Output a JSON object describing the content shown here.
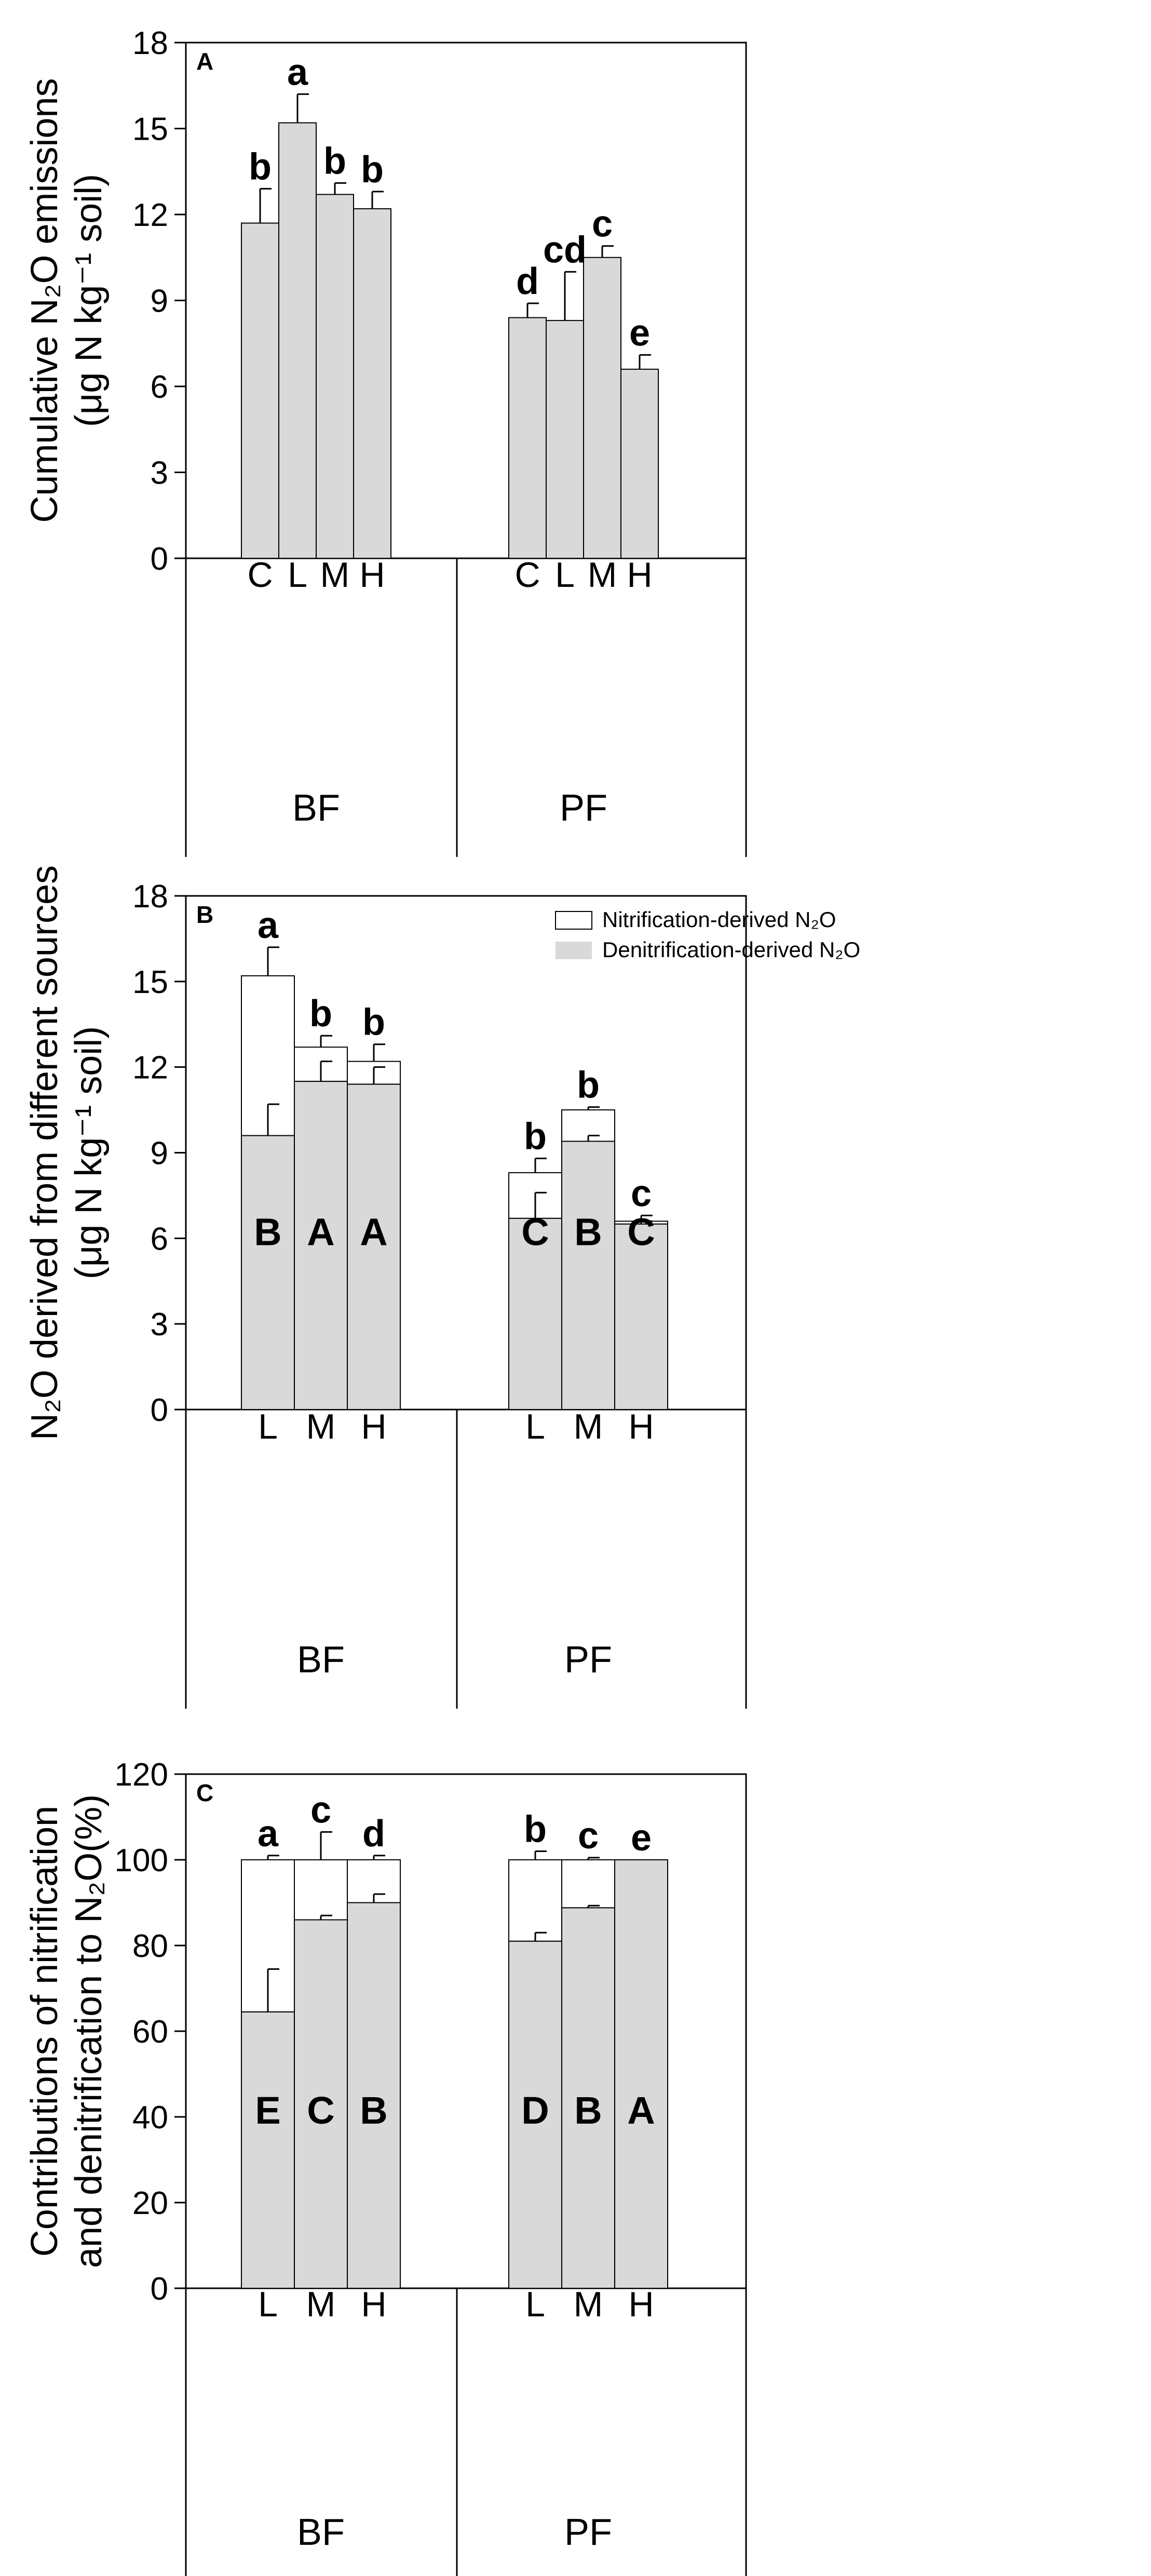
{
  "colors": {
    "denitrification_fill": "#d9d9d9",
    "nitrification_fill": "#ffffff",
    "bar_fill": "#d9d9d9",
    "stroke": "#000000"
  },
  "legend": {
    "nitrification": "Nitrification-derived N₂O",
    "denitrification": "Denitrification-derived N₂O"
  },
  "chart_data": [
    {
      "id": "A",
      "type": "bar",
      "panel_label": "A",
      "ylabel_line1": "Cumulative N₂O emissions",
      "ylabel_line2": "(μg N kg⁻¹ soil)",
      "ylim": [
        0,
        18
      ],
      "yticks": [
        0,
        3,
        6,
        9,
        12,
        15,
        18
      ],
      "groups": [
        {
          "name": "BF",
          "categories": [
            "C",
            "L",
            "M",
            "H"
          ],
          "values": [
            11.7,
            15.2,
            12.7,
            12.2
          ],
          "errors": [
            1.2,
            1.0,
            0.4,
            0.6
          ],
          "letters": [
            "b",
            "a",
            "b",
            "b"
          ]
        },
        {
          "name": "PF",
          "categories": [
            "C",
            "L",
            "M",
            "H"
          ],
          "values": [
            8.4,
            8.3,
            10.5,
            6.6
          ],
          "errors": [
            0.5,
            1.7,
            0.4,
            0.5
          ],
          "letters": [
            "d",
            "cd",
            "c",
            "e"
          ]
        }
      ]
    },
    {
      "id": "B",
      "type": "bar",
      "stacked": true,
      "panel_label": "B",
      "ylabel_line1": "N₂O  derived from different sources",
      "ylabel_line2": "(μg N kg⁻¹ soil)",
      "ylim": [
        0,
        18
      ],
      "yticks": [
        0,
        3,
        6,
        9,
        12,
        15,
        18
      ],
      "legend": "top-right",
      "groups": [
        {
          "name": "BF",
          "categories": [
            "L",
            "M",
            "H"
          ],
          "denitrification": [
            9.6,
            11.5,
            11.4
          ],
          "denitrification_errors": [
            1.1,
            0.7,
            0.6
          ],
          "total": [
            15.2,
            12.7,
            12.2
          ],
          "total_errors": [
            1.0,
            0.4,
            0.6
          ],
          "upper_letters": [
            "B",
            "A",
            "A"
          ],
          "lower_letters": [
            "a",
            "b",
            "b"
          ]
        },
        {
          "name": "PF",
          "categories": [
            "L",
            "M",
            "H"
          ],
          "denitrification": [
            6.7,
            9.4,
            6.5
          ],
          "denitrification_errors": [
            0.9,
            0.2,
            0.1
          ],
          "total": [
            8.3,
            10.5,
            6.6
          ],
          "total_errors": [
            0.5,
            0.1,
            0.2
          ],
          "upper_letters": [
            "C",
            "B",
            "C"
          ],
          "lower_letters": [
            "b",
            "b",
            "c"
          ]
        }
      ]
    },
    {
      "id": "C",
      "type": "bar",
      "stacked": true,
      "panel_label": "C",
      "ylabel_line1": "Contributions of nitrification",
      "ylabel_line2": "and denitrification to N₂O(%)",
      "ylim": [
        0,
        120
      ],
      "yticks": [
        0,
        20,
        40,
        60,
        80,
        100,
        120
      ],
      "groups": [
        {
          "name": "BF",
          "categories": [
            "L",
            "M",
            "H"
          ],
          "denitrification": [
            64.5,
            86,
            90
          ],
          "denitrification_errors": [
            10,
            1,
            2
          ],
          "total": [
            100,
            100,
            100
          ],
          "total_errors": [
            1,
            6.5,
            1
          ],
          "upper_letters": [
            "E",
            "C",
            "B"
          ],
          "lower_letters": [
            "a",
            "c",
            "d"
          ]
        },
        {
          "name": "PF",
          "categories": [
            "L",
            "M",
            "H"
          ],
          "denitrification": [
            81,
            88.8,
            100
          ],
          "denitrification_errors": [
            2,
            0.5,
            0
          ],
          "total": [
            100,
            100,
            100
          ],
          "total_errors": [
            2,
            0.5,
            0
          ],
          "upper_letters": [
            "D",
            "B",
            "A"
          ],
          "lower_letters": [
            "b",
            "c",
            "e"
          ]
        }
      ]
    }
  ]
}
